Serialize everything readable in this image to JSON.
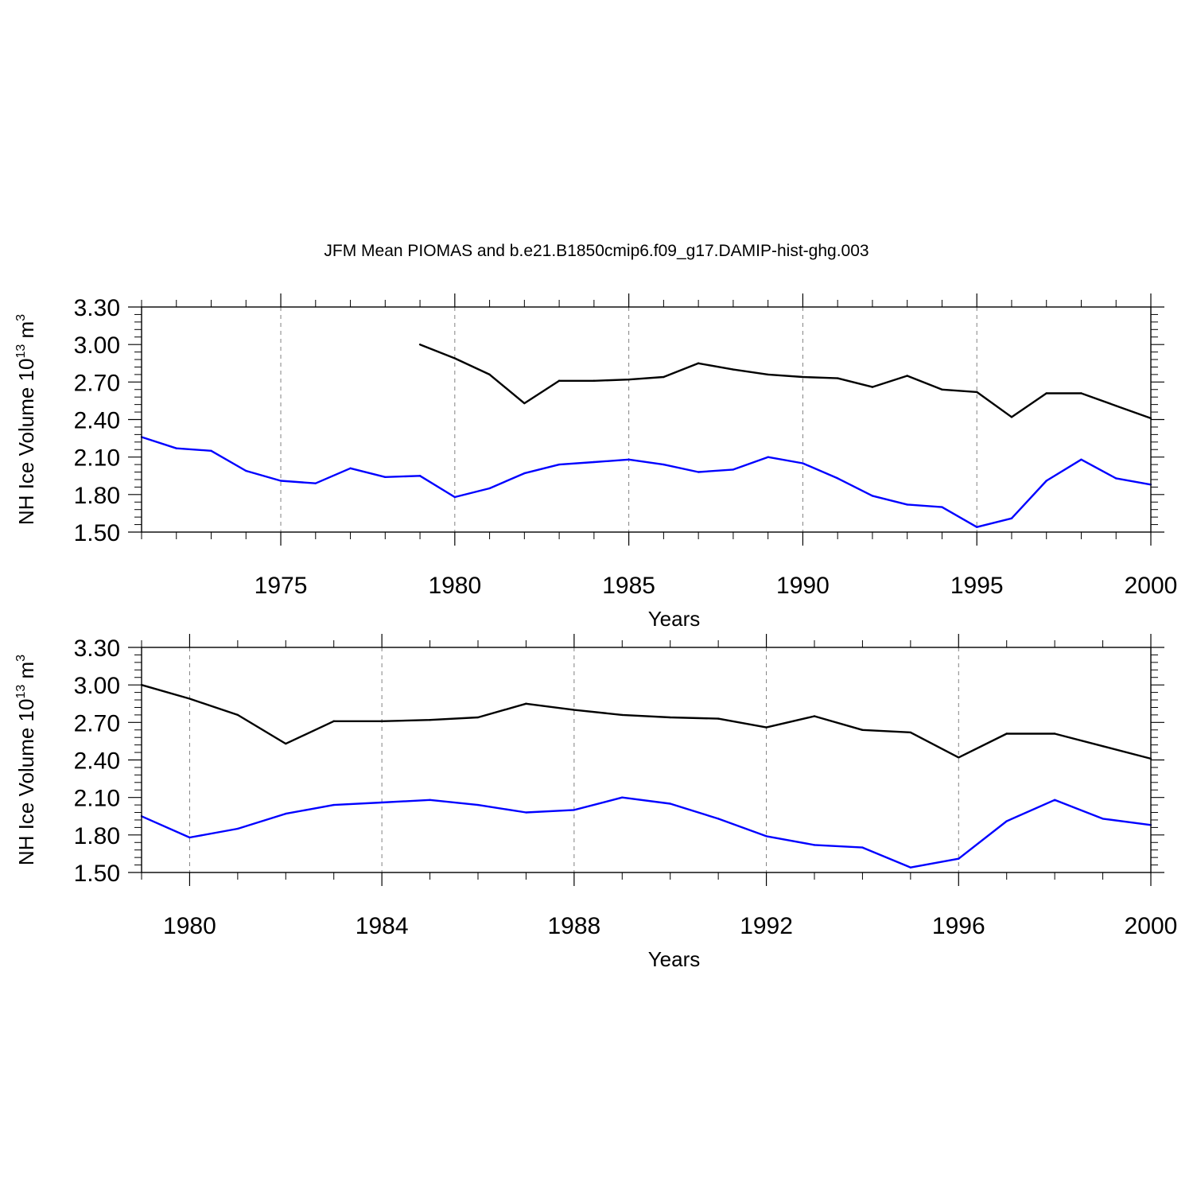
{
  "title": "JFM Mean PIOMAS and b.e21.B1850cmip6.f09_g17.DAMIP-hist-ghg.003",
  "colors": {
    "piomas": "#000000",
    "model": "#0000ff",
    "axis": "#000000",
    "grid": "#808080"
  },
  "chart_data": [
    {
      "type": "line",
      "name": "top-panel",
      "xlabel": "Years",
      "ylabel": {
        "prefix": "NH Ice Volume 10",
        "exponent": "13",
        "unit": " m",
        "unit_exponent": "3"
      },
      "xlim": [
        1971,
        2000
      ],
      "ylim": [
        1.5,
        3.3
      ],
      "yticks": [
        1.5,
        1.8,
        2.1,
        2.4,
        2.7,
        3.0,
        3.3
      ],
      "ytick_labels": [
        "1.50",
        "1.80",
        "2.10",
        "2.40",
        "2.70",
        "3.00",
        "3.30"
      ],
      "xticks": [
        1975,
        1980,
        1985,
        1990,
        1995,
        2000
      ],
      "xtick_labels": [
        "1975",
        "1980",
        "1985",
        "1990",
        "1995",
        "2000"
      ],
      "x_minor_step": 1,
      "y_minor_step": 0.06,
      "series": [
        {
          "name": "PIOMAS",
          "color_key": "piomas",
          "x": [
            1979,
            1980,
            1981,
            1982,
            1983,
            1984,
            1985,
            1986,
            1987,
            1988,
            1989,
            1990,
            1991,
            1992,
            1993,
            1994,
            1995,
            1996,
            1997,
            1998,
            1999,
            2000
          ],
          "values": [
            3.0,
            2.89,
            2.76,
            2.53,
            2.71,
            2.71,
            2.72,
            2.74,
            2.85,
            2.8,
            2.76,
            2.74,
            2.73,
            2.66,
            2.75,
            2.64,
            2.62,
            2.42,
            2.61,
            2.61,
            2.51,
            2.41
          ]
        },
        {
          "name": "b.e21.B1850cmip6.f09_g17.DAMIP-hist-ghg.003",
          "color_key": "model",
          "x": [
            1971,
            1972,
            1973,
            1974,
            1975,
            1976,
            1977,
            1978,
            1979,
            1980,
            1981,
            1982,
            1983,
            1984,
            1985,
            1986,
            1987,
            1988,
            1989,
            1990,
            1991,
            1992,
            1993,
            1994,
            1995,
            1996,
            1997,
            1998,
            1999,
            2000
          ],
          "values": [
            2.26,
            2.17,
            2.15,
            1.99,
            1.91,
            1.89,
            2.01,
            1.94,
            1.95,
            1.78,
            1.85,
            1.97,
            2.04,
            2.06,
            2.08,
            2.04,
            1.98,
            2.0,
            2.1,
            2.05,
            1.93,
            1.79,
            1.72,
            1.7,
            1.54,
            1.61,
            1.91,
            2.08,
            1.93,
            1.88
          ]
        }
      ]
    },
    {
      "type": "line",
      "name": "bottom-panel",
      "xlabel": "Years",
      "ylabel": {
        "prefix": "NH Ice Volume 10",
        "exponent": "13",
        "unit": " m",
        "unit_exponent": "3"
      },
      "xlim": [
        1979,
        2000
      ],
      "ylim": [
        1.5,
        3.3
      ],
      "yticks": [
        1.5,
        1.8,
        2.1,
        2.4,
        2.7,
        3.0,
        3.3
      ],
      "ytick_labels": [
        "1.50",
        "1.80",
        "2.10",
        "2.40",
        "2.70",
        "3.00",
        "3.30"
      ],
      "xticks": [
        1980,
        1984,
        1988,
        1992,
        1996,
        2000
      ],
      "xtick_labels": [
        "1980",
        "1984",
        "1988",
        "1992",
        "1996",
        "2000"
      ],
      "x_minor_step": 1,
      "y_minor_step": 0.06,
      "series": [
        {
          "name": "PIOMAS",
          "color_key": "piomas",
          "x": [
            1979,
            1980,
            1981,
            1982,
            1983,
            1984,
            1985,
            1986,
            1987,
            1988,
            1989,
            1990,
            1991,
            1992,
            1993,
            1994,
            1995,
            1996,
            1997,
            1998,
            1999,
            2000
          ],
          "values": [
            3.0,
            2.89,
            2.76,
            2.53,
            2.71,
            2.71,
            2.72,
            2.74,
            2.85,
            2.8,
            2.76,
            2.74,
            2.73,
            2.66,
            2.75,
            2.64,
            2.62,
            2.42,
            2.61,
            2.61,
            2.51,
            2.41
          ]
        },
        {
          "name": "b.e21.B1850cmip6.f09_g17.DAMIP-hist-ghg.003",
          "color_key": "model",
          "x": [
            1979,
            1980,
            1981,
            1982,
            1983,
            1984,
            1985,
            1986,
            1987,
            1988,
            1989,
            1990,
            1991,
            1992,
            1993,
            1994,
            1995,
            1996,
            1997,
            1998,
            1999,
            2000
          ],
          "values": [
            1.95,
            1.78,
            1.85,
            1.97,
            2.04,
            2.06,
            2.08,
            2.04,
            1.98,
            2.0,
            2.1,
            2.05,
            1.93,
            1.79,
            1.72,
            1.7,
            1.54,
            1.61,
            1.91,
            2.08,
            1.93,
            1.88
          ]
        }
      ]
    }
  ]
}
